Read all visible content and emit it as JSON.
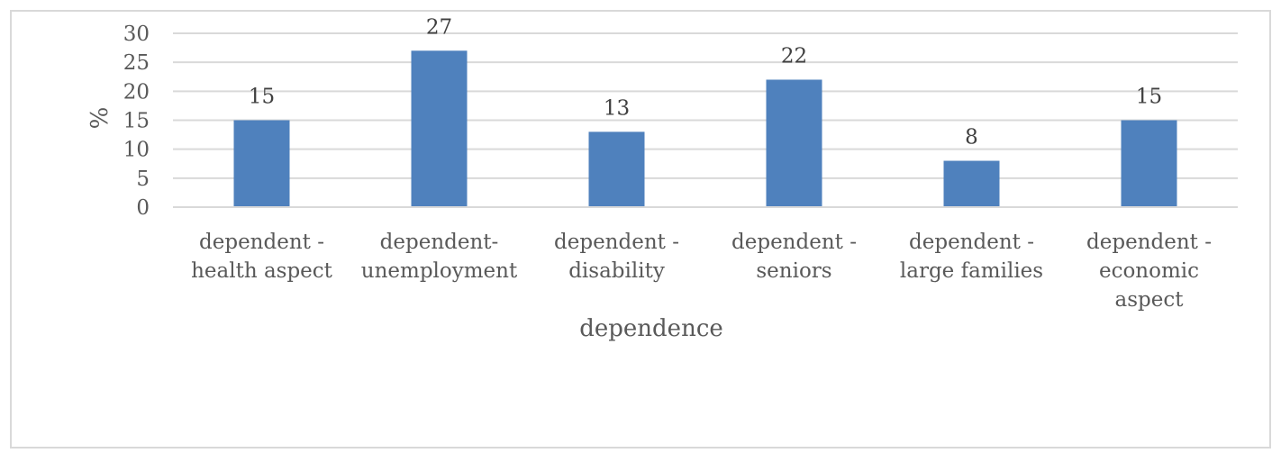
{
  "chart_data": {
    "type": "bar",
    "categories": [
      [
        "dependent -",
        "health aspect"
      ],
      [
        "dependent-",
        "unemployment"
      ],
      [
        "dependent -",
        "disability"
      ],
      [
        "dependent -",
        "seniors"
      ],
      [
        "dependent -",
        "large families"
      ],
      [
        "dependent -",
        "economic",
        "aspect"
      ]
    ],
    "values": [
      15,
      27,
      13,
      22,
      8,
      15
    ],
    "xlabel": "dependence",
    "ylabel": "%",
    "ylim": [
      0,
      30
    ],
    "yticks": [
      "0",
      "5",
      "10",
      "15",
      "20",
      "25",
      "30"
    ],
    "data_labels": [
      "15",
      "27",
      "13",
      "22",
      "8",
      "15"
    ],
    "grid": true,
    "legend": false,
    "bar_color": "#4f81bd",
    "grid_color": "#d9d9d9",
    "text_color": "#595959"
  }
}
